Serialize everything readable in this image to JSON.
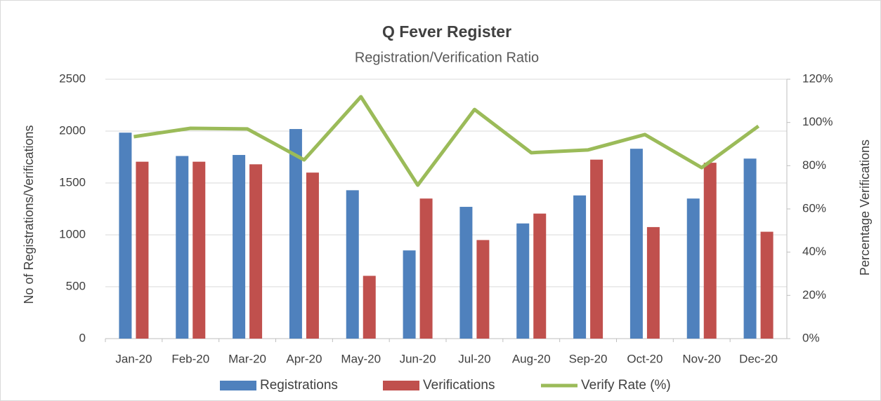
{
  "chart_data": {
    "type": "bar",
    "title": "Q Fever Register",
    "subtitle": "Registration/Verification Ratio",
    "y_label": "No of Registrations/Verifications",
    "y2_label": "Percentage Verifications",
    "categories": [
      "Jan-20",
      "Feb-20",
      "Mar-20",
      "Apr-20",
      "May-20",
      "Jun-20",
      "Jul-20",
      "Aug-20",
      "Sep-20",
      "Oct-20",
      "Nov-20",
      "Dec-20"
    ],
    "series": [
      {
        "name": "Registrations",
        "type": "bar",
        "color": "#4f81bd",
        "values": [
          1985,
          1760,
          1770,
          2020,
          1430,
          850,
          1270,
          1110,
          1380,
          1830,
          1350,
          1735
        ]
      },
      {
        "name": "Verifications",
        "type": "bar",
        "color": "#c0504d",
        "values": [
          1705,
          1705,
          1680,
          1600,
          605,
          1350,
          950,
          1205,
          1725,
          1075,
          1695,
          1030
        ]
      },
      {
        "name": "Verify Rate (%)",
        "type": "line",
        "axis": "y2",
        "color": "#9bbb59",
        "values": [
          93.4,
          97.3,
          97,
          82.7,
          111.9,
          71,
          106,
          86,
          87.3,
          94.4,
          79.1,
          98.3
        ]
      }
    ],
    "ylim": [
      0,
      2500
    ],
    "yticks": [
      0,
      500,
      1000,
      1500,
      2000,
      2500
    ],
    "y2lim": [
      0,
      120
    ],
    "y2ticks": [
      {
        "value": 0,
        "label": "0%"
      },
      {
        "value": 20,
        "label": "20%"
      },
      {
        "value": 40,
        "label": "40%"
      },
      {
        "value": 60,
        "label": "60%"
      },
      {
        "value": 80,
        "label": "80%"
      },
      {
        "value": 100,
        "label": "100%"
      },
      {
        "value": 120,
        "label": "120%"
      }
    ],
    "grid": true,
    "legend": "bottom"
  }
}
